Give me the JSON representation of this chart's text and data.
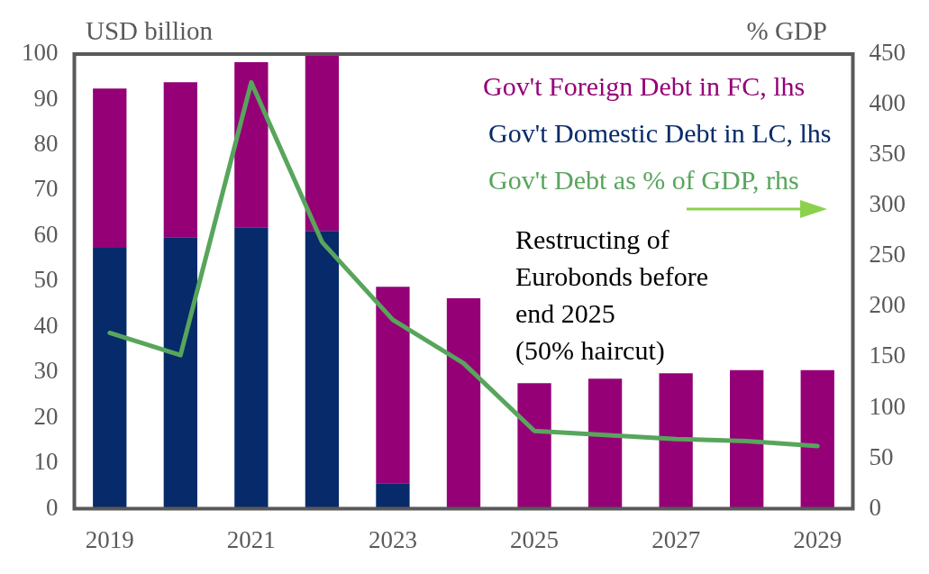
{
  "chart_data": {
    "type": "bar",
    "stacked": true,
    "ylabel": "USD billion",
    "y2label": "% GDP",
    "categories": [
      "2019",
      null,
      "2021",
      null,
      "2023",
      null,
      "2025",
      null,
      "2027",
      null,
      "2029"
    ],
    "series": [
      {
        "name": "Gov't Domestic Debt in LC, lhs",
        "color": "#062a6a",
        "values": [
          57.4,
          59.7,
          61.9,
          61.1,
          5.6,
          0,
          0,
          0,
          0,
          0,
          0
        ]
      },
      {
        "name": "Gov't Foreign Debt in FC, lhs",
        "color": "#950077",
        "values": [
          35,
          34.1,
          36.3,
          38.5,
          43.2,
          46.3,
          27.6,
          28.6,
          29.8,
          30.5,
          30.5
        ]
      },
      {
        "name": "Gov't Debt as % of GDP, rhs",
        "type": "line",
        "axis": "y2",
        "color": "#58a55c",
        "values": [
          174,
          152,
          422,
          264,
          187,
          144,
          77,
          73,
          69,
          67,
          62
        ]
      }
    ],
    "ylim": [
      0,
      100
    ],
    "yticks": [
      0,
      10,
      20,
      30,
      40,
      50,
      60,
      70,
      80,
      90,
      100
    ],
    "y2lim": [
      0,
      450
    ],
    "y2ticks": [
      0,
      50,
      100,
      150,
      200,
      250,
      300,
      350,
      400,
      450
    ],
    "grid": false,
    "legend": "top right",
    "marker": "none",
    "line_style": "solid",
    "annotations": [
      "Restructing of\nEurobonds before\nend 2025\n(50% haircut)"
    ]
  }
}
